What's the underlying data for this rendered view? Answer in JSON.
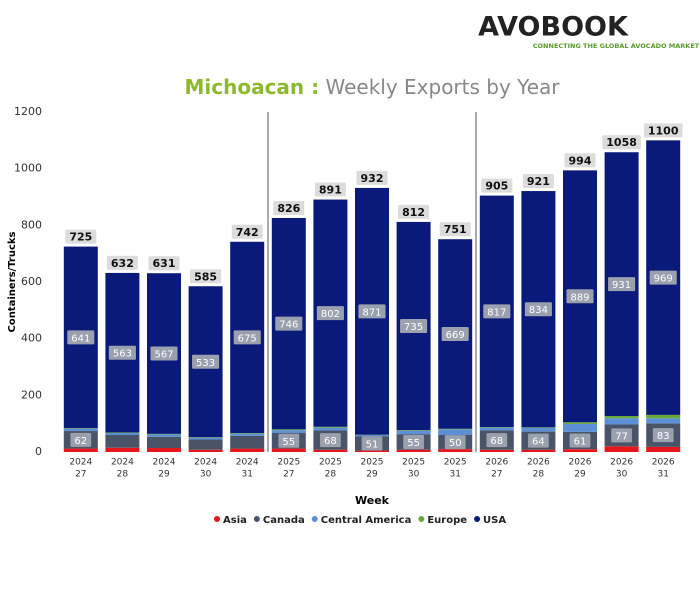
{
  "logo": {
    "name": "AVOBOOK",
    "tagline": "CONNECTING THE GLOBAL AVOCADO MARKET"
  },
  "chart_data": {
    "type": "stacked_bar",
    "title_parts": [
      "Michoacan :",
      "Weekly Exports by Year"
    ],
    "x_label": "Week",
    "y_label": "Containers/Trucks",
    "categories": [
      [
        "2024",
        "27"
      ],
      [
        "2024",
        "28"
      ],
      [
        "2024",
        "29"
      ],
      [
        "2024",
        "30"
      ],
      [
        "2024",
        "31"
      ],
      [
        "2025",
        "27"
      ],
      [
        "2025",
        "28"
      ],
      [
        "2025",
        "29"
      ],
      [
        "2025",
        "30"
      ],
      [
        "2025",
        "31"
      ],
      [
        "2026",
        "27"
      ],
      [
        "2026",
        "28"
      ],
      [
        "2026",
        "29"
      ],
      [
        "2026",
        "30"
      ],
      [
        "2026",
        "31"
      ]
    ],
    "series": [
      {
        "name": "Asia",
        "color": "#e8151b",
        "values": [
          12,
          15,
          14,
          8,
          12,
          12,
          8,
          5,
          8,
          10,
          8,
          8,
          10,
          20,
          18
        ]
      },
      {
        "name": "Canada",
        "color": "#4a5469",
        "values": [
          62,
          45,
          40,
          36,
          45,
          55,
          68,
          51,
          55,
          50,
          68,
          64,
          61,
          77,
          83
        ],
        "value_labels": [
          62,
          null,
          null,
          null,
          null,
          55,
          68,
          51,
          55,
          50,
          68,
          64,
          61,
          77,
          83
        ]
      },
      {
        "name": "Central America",
        "color": "#5b8fd6",
        "values": [
          8,
          7,
          8,
          6,
          8,
          10,
          10,
          4,
          12,
          20,
          10,
          13,
          28,
          22,
          18
        ]
      },
      {
        "name": "Europe",
        "color": "#6aaa3a",
        "values": [
          2,
          2,
          2,
          2,
          2,
          3,
          3,
          1,
          2,
          2,
          2,
          2,
          6,
          8,
          12
        ]
      },
      {
        "name": "USA",
        "color": "#0a1a7a",
        "values": [
          641,
          563,
          567,
          533,
          675,
          746,
          802,
          871,
          735,
          669,
          817,
          834,
          889,
          931,
          969
        ],
        "value_labels": [
          641,
          563,
          567,
          533,
          675,
          746,
          802,
          871,
          735,
          669,
          817,
          834,
          889,
          931,
          969
        ]
      }
    ],
    "totals": [
      725,
      632,
      631,
      585,
      742,
      826,
      891,
      932,
      812,
      751,
      905,
      921,
      994,
      1058,
      1100
    ],
    "ylim": [
      0,
      1200
    ],
    "yticks": [
      0,
      200,
      400,
      600,
      800,
      1000,
      1200
    ],
    "grid": false
  }
}
